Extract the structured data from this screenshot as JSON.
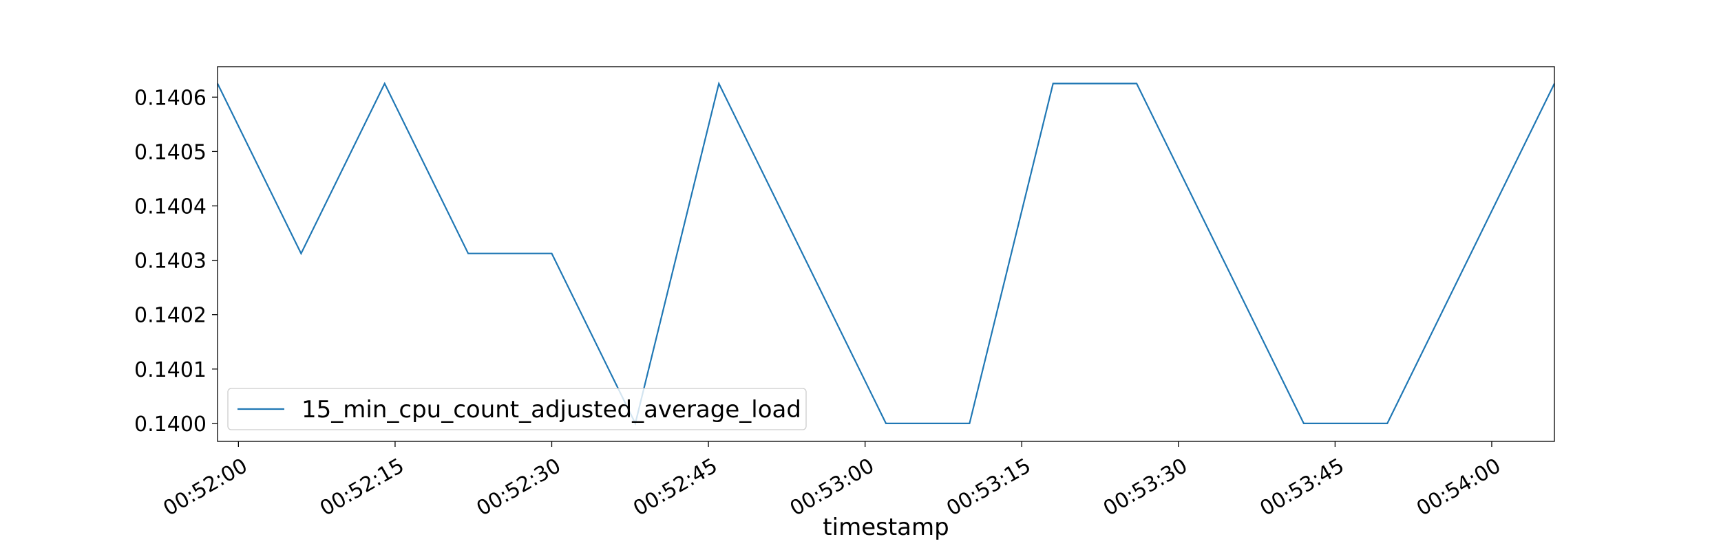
{
  "chart_data": {
    "type": "line",
    "title": "",
    "xlabel": "timestamp",
    "ylabel": "",
    "x_ticks": [
      "00:52:00",
      "00:52:15",
      "00:52:30",
      "00:52:45",
      "00:53:00",
      "00:53:15",
      "00:53:30",
      "00:53:45",
      "00:54:00"
    ],
    "y_ticks": [
      "0.1400",
      "0.1401",
      "0.1402",
      "0.1403",
      "0.1404",
      "0.1405",
      "0.1406"
    ],
    "xlim": [
      "00:51:58",
      "00:54:06"
    ],
    "ylim": [
      0.139967,
      0.140656
    ],
    "grid": false,
    "legend_position": "lower-left",
    "series": [
      {
        "name": "15_min_cpu_count_adjusted_average_load",
        "color": "#1f77b4",
        "x": [
          "00:51:58",
          "00:52:06",
          "00:52:14",
          "00:52:22",
          "00:52:30",
          "00:52:38",
          "00:52:46",
          "00:52:54",
          "00:53:02",
          "00:53:10",
          "00:53:18",
          "00:53:26",
          "00:53:34",
          "00:53:42",
          "00:53:50",
          "00:53:58",
          "00:54:06"
        ],
        "y": [
          0.140625,
          0.1403125,
          0.140625,
          0.1403125,
          0.1403125,
          0.14,
          0.140625,
          0.1403125,
          0.14,
          0.14,
          0.140625,
          0.140625,
          0.1403125,
          0.14,
          0.14,
          0.1403125,
          0.140625
        ]
      }
    ]
  }
}
